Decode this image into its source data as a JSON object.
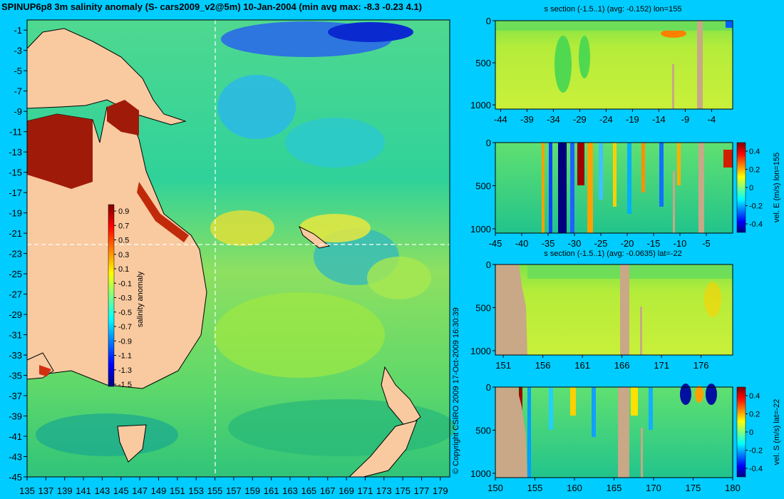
{
  "main_title": "SPINUP6p8 3m salinity anomaly (S- cars2009_v2@5m) 10-Jan-2004 (min avg max: -8.3 -0.23 4.1)",
  "copyright": "© Copyright CSIRO 2009  17-Oct-2009 16:30:39",
  "colors": {
    "background": "#00ccff",
    "land": "#f9caa0",
    "mask": "#c8a886",
    "colormap": [
      "#00007f",
      "#0000ff",
      "#0080ff",
      "#00ffff",
      "#80ff80",
      "#ffff00",
      "#ff8000",
      "#ff0000",
      "#7f0000"
    ]
  },
  "map": {
    "type": "heatmap",
    "x_ticks": [
      "135",
      "137",
      "139",
      "141",
      "143",
      "145",
      "147",
      "149",
      "151",
      "153",
      "155",
      "157",
      "159",
      "161",
      "163",
      "165",
      "167",
      "169",
      "171",
      "173",
      "175",
      "177",
      "179"
    ],
    "y_ticks": [
      "-1",
      "-3",
      "-5",
      "-7",
      "-9",
      "-11",
      "-13",
      "-15",
      "-17",
      "-19",
      "-21",
      "-23",
      "-25",
      "-27",
      "-29",
      "-31",
      "-33",
      "-35",
      "-37",
      "-39",
      "-41",
      "-43",
      "-45"
    ],
    "xlim": [
      135,
      180
    ],
    "ylim": [
      -45,
      0
    ],
    "section_lon": 155,
    "section_lat": -22,
    "colorbar": {
      "label": "salinity anomaly",
      "ticks": [
        "0.9",
        "0.7",
        "0.5",
        "0.3",
        "0.1",
        "-0.1",
        "-0.3",
        "-0.5",
        "-0.7",
        "-0.9",
        "-1.1",
        "-1.3",
        "-1.5"
      ]
    }
  },
  "panels": [
    {
      "title": "s section (-1.5..1) (avg: -0.152) lon=155",
      "x_ticks": [
        "-44",
        "-39",
        "-34",
        "-29",
        "-24",
        "-19",
        "-14",
        "-9",
        "-4"
      ],
      "y_ticks": [
        "0",
        "500",
        "1000"
      ],
      "colorbar": null
    },
    {
      "title": "",
      "x_ticks": [
        "-45",
        "-40",
        "-35",
        "-30",
        "-25",
        "-20",
        "-15",
        "-10",
        "-5"
      ],
      "y_ticks": [
        "0",
        "500",
        "1000"
      ],
      "colorbar": {
        "label": "vel. E (m/s) lon=155",
        "ticks": [
          "0.4",
          "0.2",
          "0",
          "-0.2",
          "-0.4"
        ]
      }
    },
    {
      "title": "s section (-1.5..1) (avg: -0.0635) lat=-22",
      "x_ticks": [
        "151",
        "156",
        "161",
        "166",
        "171",
        "176"
      ],
      "y_ticks": [
        "0",
        "500",
        "1000"
      ],
      "colorbar": null
    },
    {
      "title": "",
      "x_ticks": [
        "150",
        "155",
        "160",
        "165",
        "170",
        "175",
        "180"
      ],
      "y_ticks": [
        "0",
        "500",
        "1000"
      ],
      "colorbar": {
        "label": "vel. S (m/s) lat=-22",
        "ticks": [
          "0.4",
          "0.2",
          "0",
          "-0.2",
          "-0.4"
        ]
      }
    }
  ],
  "chart_data": [
    {
      "type": "heatmap",
      "title": "SPINUP6p8 3m salinity anomaly (S- cars2009_v2@5m) 10-Jan-2004 (min avg max: -8.3 -0.23 4.1)",
      "xlim": [
        135,
        180
      ],
      "ylim": [
        -45,
        0
      ],
      "colorbar_range": [
        -1.5,
        1.0
      ],
      "stats": {
        "min": -8.3,
        "avg": -0.23,
        "max": 4.1
      }
    },
    {
      "type": "heatmap",
      "title": "s section (-1.5..1) (avg: -0.152) lon=155",
      "xlim": [
        -45,
        0
      ],
      "ylim": [
        1050,
        0
      ],
      "avg": -0.152
    },
    {
      "type": "heatmap",
      "title": "",
      "xlim": [
        -45,
        0
      ],
      "ylim": [
        1050,
        0
      ],
      "colorbar_range": [
        -0.4,
        0.4
      ],
      "colorbar_label": "vel. E (m/s) lon=155"
    },
    {
      "type": "heatmap",
      "title": "s section (-1.5..1) (avg: -0.0635) lat=-22",
      "xlim": [
        150,
        180
      ],
      "ylim": [
        1050,
        0
      ],
      "avg": -0.0635
    },
    {
      "type": "heatmap",
      "title": "",
      "xlim": [
        150,
        180
      ],
      "ylim": [
        1050,
        0
      ],
      "colorbar_range": [
        -0.4,
        0.4
      ],
      "colorbar_label": "vel. S (m/s) lat=-22"
    }
  ]
}
